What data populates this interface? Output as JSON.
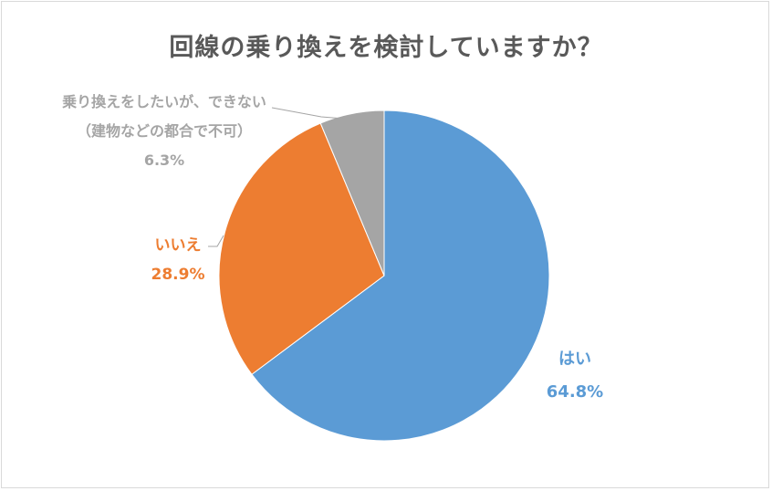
{
  "title": "回線の乗り換えを検討していますか？",
  "chart_data": {
    "type": "pie",
    "title": "回線の乗り換えを検討していますか？",
    "categories": [
      "はい",
      "いいえ",
      "乗り換えをしたいが、できない（建物などの都合で不可）"
    ],
    "values": [
      64.8,
      28.9,
      6.3
    ],
    "unit": "%",
    "colors": [
      "#5b9bd5",
      "#ed7d31",
      "#a5a5a5"
    ],
    "start_angle": "12 o'clock, clockwise",
    "legend": "none (data labels with leader lines)"
  },
  "labels": {
    "yes": {
      "name": "はい",
      "value": "64.8%"
    },
    "no": {
      "name": "いいえ",
      "value": "28.9%"
    },
    "cannot": {
      "line1": "乗り換えをしたいが、できない",
      "line2": "（建物などの都合で不可）",
      "value": "6.3%"
    }
  },
  "colors": {
    "yes": "#5b9bd5",
    "no": "#ed7d31",
    "cannot": "#a5a5a5",
    "title": "#595959"
  }
}
